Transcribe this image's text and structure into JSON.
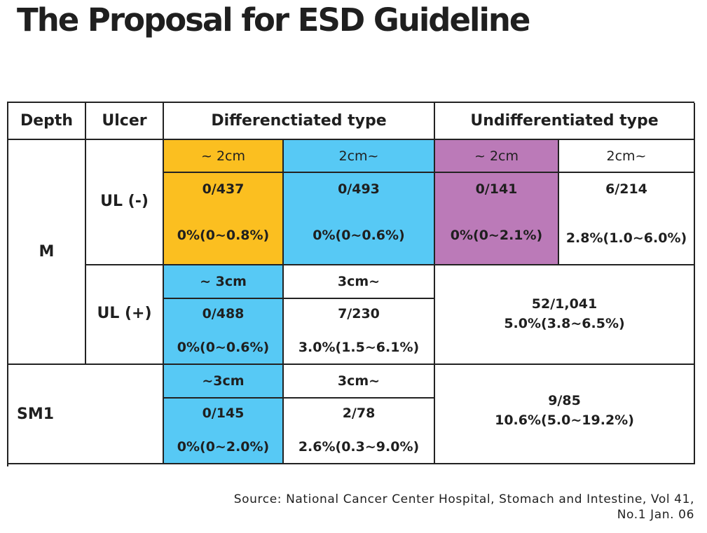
{
  "title": "The Proposal for ESD Guideline",
  "colors": {
    "yellow": "#fbbf20",
    "blue": "#57c9f5",
    "purple": "#bb7ab8"
  },
  "table": {
    "headers": {
      "depth": "Depth",
      "ulcer": "Ulcer",
      "diff": "Differenctiated type",
      "undiff": "Undifferentiated type"
    },
    "depth_m": "M",
    "depth_sm1": "SM1",
    "ul_minus": "UL (-)",
    "ul_plus": "UL (+)",
    "m_ulminus": {
      "sizes": [
        "~ 2cm",
        "2cm~",
        "~ 2cm",
        "2cm~"
      ],
      "ratios": [
        "0/437",
        "0/493",
        "0/141",
        "6/214"
      ],
      "pcts": [
        "0%(0~0.8%)",
        "0%(0~0.6%)",
        "0%(0~2.1%)",
        "2.8%(1.0~6.0%)"
      ]
    },
    "m_ulplus": {
      "sizes": [
        "~ 3cm",
        "3cm~"
      ],
      "ratios": [
        "0/488",
        "7/230"
      ],
      "pcts": [
        "0%(0~0.6%)",
        "3.0%(1.5~6.1%)"
      ],
      "undiff_ratio": "52/1,041",
      "undiff_pct": "5.0%(3.8~6.5%)"
    },
    "sm1": {
      "sizes": [
        "~3cm",
        "3cm~"
      ],
      "ratios": [
        "0/145",
        "2/78"
      ],
      "pcts": [
        "0%(0~2.0%)",
        "2.6%(0.3~9.0%)"
      ],
      "undiff_ratio": "9/85",
      "undiff_pct": "10.6%(5.0~19.2%)"
    }
  },
  "source": {
    "line1": "Source: National Cancer Center Hospital, Stomach and Intestine, Vol 41,",
    "line2": "No.1 Jan. 06"
  }
}
